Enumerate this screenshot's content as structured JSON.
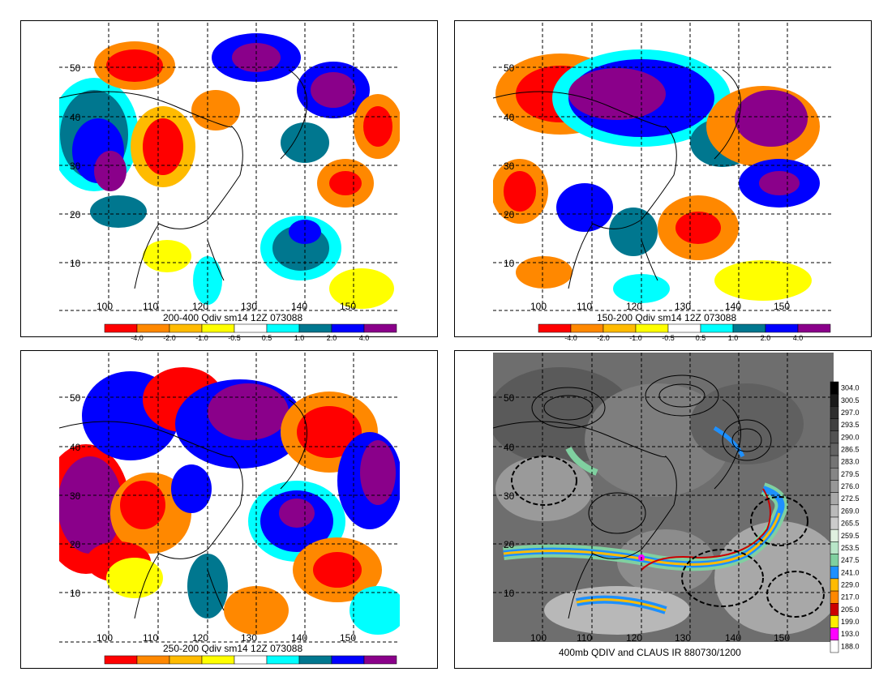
{
  "panels": [
    {
      "id": "p1",
      "caption": "200-400 Qdiv sm14 12Z 073088",
      "lat_labels": [
        "50",
        "40",
        "30",
        "20",
        "10"
      ],
      "lon_labels": [
        "100",
        "110",
        "120",
        "130",
        "140",
        "150"
      ],
      "colorbar": {
        "labels": [
          "-4.0",
          "-2.0",
          "-1.0",
          "-0.5",
          "0.5",
          "1.0",
          "2.0",
          "4.0"
        ],
        "colors": [
          "#ff0000",
          "#ff8800",
          "#ffbb00",
          "#ffff00",
          "#ffffff",
          "#00ffff",
          "#00778f",
          "#0000ff",
          "#8a008a"
        ]
      }
    },
    {
      "id": "p2",
      "caption": "150-200 Qdiv sm14 12Z 073088",
      "lat_labels": [
        "50",
        "40",
        "30",
        "20",
        "10"
      ],
      "lon_labels": [
        "100",
        "110",
        "120",
        "130",
        "140",
        "150"
      ],
      "colorbar": {
        "labels": [
          "-4.0",
          "-2.0",
          "-1.0",
          "-0.5",
          "0.5",
          "1.0",
          "2.0",
          "4.0"
        ],
        "colors": [
          "#ff0000",
          "#ff8800",
          "#ffbb00",
          "#ffff00",
          "#ffffff",
          "#00ffff",
          "#00778f",
          "#0000ff",
          "#8a008a"
        ]
      }
    },
    {
      "id": "p3",
      "caption": "250-200 Qdiv sm14 12Z 073088",
      "lat_labels": [
        "50",
        "40",
        "30",
        "20",
        "10"
      ],
      "lon_labels": [
        "100",
        "110",
        "120",
        "130",
        "140",
        "150"
      ],
      "colorbar": {
        "labels": [],
        "colors": [
          "#ff0000",
          "#ff8800",
          "#ffbb00",
          "#ffff00",
          "#ffffff",
          "#00ffff",
          "#00778f",
          "#0000ff",
          "#8a008a"
        ]
      }
    },
    {
      "id": "p4",
      "caption": "400mb QDIV and CLAUS IR 880730/1200",
      "lat_labels": [
        "50",
        "40",
        "30",
        "20",
        "10"
      ],
      "lon_labels": [
        "100",
        "110",
        "120",
        "130",
        "140",
        "150"
      ],
      "colorbar": {
        "labels": [
          "304.0",
          "300.5",
          "297.0",
          "293.5",
          "290.0",
          "286.5",
          "283.0",
          "279.5",
          "276.0",
          "272.5",
          "269.0",
          "265.5",
          "259.5",
          "253.5",
          "247.5",
          "241.0",
          "229.0",
          "217.0",
          "205.0",
          "199.0",
          "193.0",
          "188.0"
        ],
        "colors": [
          "#000000",
          "#1a1a1a",
          "#2e2e2e",
          "#404040",
          "#525252",
          "#636363",
          "#747474",
          "#868686",
          "#979797",
          "#a8a8a8",
          "#bababa",
          "#cbcbcb",
          "#e0f0e0",
          "#b8e6c8",
          "#80d0a0",
          "#1e90ff",
          "#ffbb00",
          "#ff8800",
          "#cc0000",
          "#ffee00",
          "#ff00ff",
          "#ffffff"
        ]
      }
    }
  ]
}
